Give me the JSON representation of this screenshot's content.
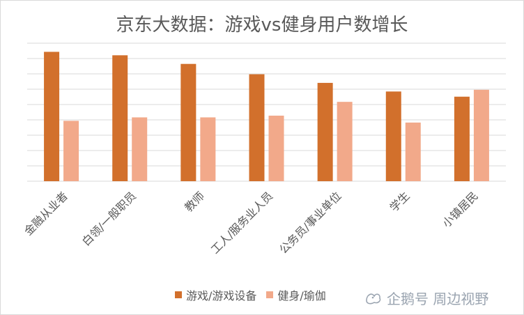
{
  "title": "京东大数据：游戏vs健身用户数增长",
  "colors": {
    "game": "#d2702c",
    "fitness": "#f2a98a",
    "grid": "#d9d9d9",
    "text": "#595959"
  },
  "chart_data": {
    "type": "bar",
    "title": "京东大数据：游戏vs健身用户数增长",
    "categories": [
      "金融从业者",
      "白领/一般职员",
      "教师",
      "工人/服务业人员",
      "公务员/事业单位",
      "学生",
      "小镇居民"
    ],
    "series": [
      {
        "name": "游戏/游戏设备",
        "values": [
          7.5,
          7.3,
          6.8,
          6.2,
          5.7,
          5.2,
          4.9
        ]
      },
      {
        "name": "健身/瑜伽",
        "values": [
          3.5,
          3.7,
          3.7,
          3.8,
          4.6,
          3.4,
          5.3
        ]
      }
    ],
    "ylim": [
      0,
      8
    ],
    "grid": true,
    "y_tick_labels_shown": false,
    "legend": "bottom"
  },
  "watermark": {
    "text": "企鹅号 周边视野",
    "icon": "penguin-logo-icon"
  }
}
